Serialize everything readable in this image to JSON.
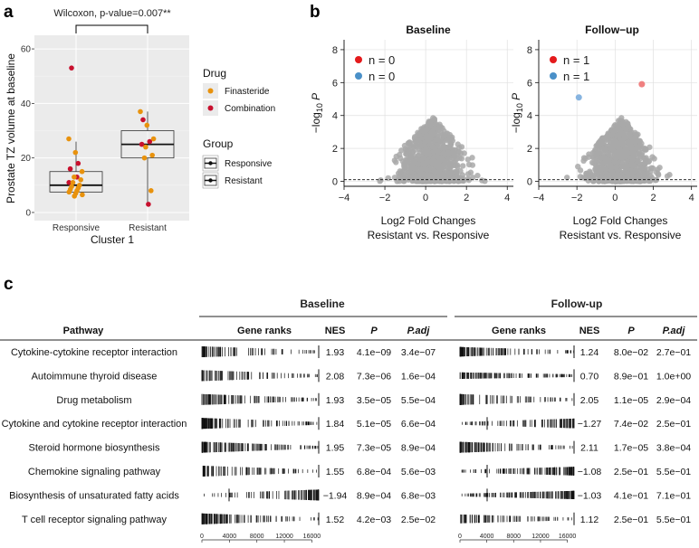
{
  "panels": {
    "a": "a",
    "b": "b",
    "c": "c"
  },
  "chart_data": [
    {
      "type": "box",
      "panel": "a",
      "title": "Wilcoxon, p-value=0.007**",
      "xlabel": "Cluster 1",
      "ylabel": "Prostate TZ volume at baseline",
      "ylim": [
        -3,
        65
      ],
      "yticks": [
        0,
        20,
        40,
        60
      ],
      "categories": [
        "Responsive",
        "Resistant"
      ],
      "boxes": [
        {
          "group": "Responsive",
          "q1": 7.5,
          "median": 10,
          "q3": 15,
          "whisker_low": 6,
          "whisker_high": 26
        },
        {
          "group": "Resistant",
          "q1": 20,
          "median": 25,
          "q3": 30,
          "whisker_low": 3,
          "whisker_high": 37
        }
      ],
      "points": [
        {
          "group": "Responsive",
          "drug": "Combination",
          "values": [
            53,
            18,
            16,
            13,
            11
          ]
        },
        {
          "group": "Responsive",
          "drug": "Finasteride",
          "values": [
            27,
            22,
            15,
            13,
            12,
            11,
            10,
            9.5,
            9,
            8.5,
            8,
            7.5,
            7,
            6.5,
            6
          ]
        },
        {
          "group": "Resistant",
          "drug": "Combination",
          "values": [
            34,
            26,
            25,
            3
          ]
        },
        {
          "group": "Resistant",
          "drug": "Finasteride",
          "values": [
            37,
            32,
            27,
            24,
            21,
            20,
            8
          ]
        }
      ],
      "legend": {
        "drug_title": "Drug",
        "drug_items": [
          {
            "label": "Finasteride",
            "color": "#e8920d"
          },
          {
            "label": "Combination",
            "color": "#c8102e"
          }
        ],
        "group_title": "Group",
        "group_items": [
          "Responsive",
          "Resistant"
        ]
      }
    },
    {
      "type": "scatter",
      "panel": "b",
      "title": "Baseline",
      "xlabel": "Log2 Fold Changes",
      "xlabel2": "Resistant vs. Responsive",
      "ylabel": "−log10 P",
      "xlim": [
        -4,
        4.3
      ],
      "ylim": [
        -0.3,
        8.6
      ],
      "xticks": [
        -4,
        -2,
        0,
        2,
        4
      ],
      "yticks": [
        0,
        2,
        4,
        6,
        8
      ],
      "threshold_y": 0.1,
      "legend": [
        {
          "label": "n = 0",
          "color": "#e41a1c"
        },
        {
          "label": "n = 0",
          "color": "#4a90c8"
        }
      ],
      "highlight": []
    },
    {
      "type": "scatter",
      "panel": "b",
      "title": "Follow−up",
      "xlabel": "Log2 Fold Changes",
      "xlabel2": "Resistant vs. Responsive",
      "ylabel": "−log10 P",
      "xlim": [
        -4,
        4.3
      ],
      "ylim": [
        -0.3,
        8.6
      ],
      "xticks": [
        -4,
        -2,
        0,
        2,
        4
      ],
      "yticks": [
        0,
        2,
        4,
        6,
        8
      ],
      "threshold_y": 0.1,
      "legend": [
        {
          "label": "n = 1",
          "color": "#e41a1c"
        },
        {
          "label": "n = 1",
          "color": "#4a90c8"
        }
      ],
      "highlight": [
        {
          "x": 1.4,
          "y": 5.9,
          "color": "#f08080"
        },
        {
          "x": -1.9,
          "y": 5.1,
          "color": "#87b4e0"
        }
      ]
    },
    {
      "type": "table",
      "panel": "c",
      "group_titles": [
        "Baseline",
        "Follow-up"
      ],
      "pathway_header": "Pathway",
      "columns": [
        "Gene ranks",
        "NES",
        "P",
        "P.adj"
      ],
      "rank_axis_ticks": [
        0,
        4000,
        8000,
        12000,
        16000
      ],
      "rank_max": 17000,
      "rows": [
        {
          "pathway": "Cytokine-cytokine receptor interaction",
          "baseline": {
            "nes": "1.93",
            "p": "4.1e−09",
            "padj": "3.4e−07"
          },
          "followup": {
            "nes": "1.24",
            "p": "8.0e−02",
            "padj": "2.7e−01"
          }
        },
        {
          "pathway": "Autoimmune thyroid disease",
          "baseline": {
            "nes": "2.08",
            "p": "7.3e−06",
            "padj": "1.6e−04"
          },
          "followup": {
            "nes": "0.70",
            "p": "8.9e−01",
            "padj": "1.0e+00"
          }
        },
        {
          "pathway": "Drug metabolism",
          "baseline": {
            "nes": "1.93",
            "p": "3.5e−05",
            "padj": "5.5e−04"
          },
          "followup": {
            "nes": "2.05",
            "p": "1.1e−05",
            "padj": "2.9e−04"
          }
        },
        {
          "pathway": "Cytokine and cytokine receptor interaction",
          "baseline": {
            "nes": "1.84",
            "p": "5.1e−05",
            "padj": "6.6e−04"
          },
          "followup": {
            "nes": "−1.27",
            "p": "7.4e−02",
            "padj": "2.5e−01"
          }
        },
        {
          "pathway": "Steroid hormone biosynthesis",
          "baseline": {
            "nes": "1.95",
            "p": "7.3e−05",
            "padj": "8.9e−04"
          },
          "followup": {
            "nes": "2.11",
            "p": "1.7e−05",
            "padj": "3.8e−04"
          }
        },
        {
          "pathway": "Chemokine signaling pathway",
          "baseline": {
            "nes": "1.55",
            "p": "6.8e−04",
            "padj": "5.6e−03"
          },
          "followup": {
            "nes": "−1.08",
            "p": "2.5e−01",
            "padj": "5.5e−01"
          }
        },
        {
          "pathway": "Biosynthesis of unsaturated fatty acids",
          "baseline": {
            "nes": "−1.94",
            "p": "8.9e−04",
            "padj": "6.8e−03"
          },
          "followup": {
            "nes": "−1.03",
            "p": "4.1e−01",
            "padj": "7.1e−01"
          }
        },
        {
          "pathway": "T cell receptor signaling pathway",
          "baseline": {
            "nes": "1.52",
            "p": "4.2e−03",
            "padj": "2.5e−02"
          },
          "followup": {
            "nes": "1.12",
            "p": "2.5e−01",
            "padj": "5.5e−01"
          }
        }
      ]
    }
  ]
}
